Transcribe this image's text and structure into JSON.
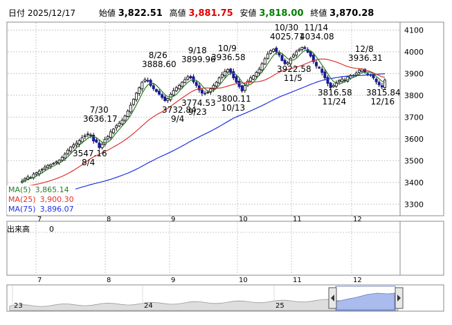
{
  "header": {
    "date_label": "日付",
    "date": "2025/12/17",
    "open_label": "始値",
    "open": "3,822.51",
    "high_label": "高値",
    "high": "3,881.75",
    "low_label": "安値",
    "low": "3,818.00",
    "close_label": "終値",
    "close": "3,870.28"
  },
  "colors": {
    "up_candle": "#ffffff",
    "down_candle": "#1a1a9c",
    "ma5": "#2a7a2a",
    "ma25": "#e03030",
    "ma75": "#2030e0",
    "high_text": "#e00000",
    "low_text": "#008000",
    "navigator_fill": "#aabbee"
  },
  "legend": {
    "ma5_label": "MA(5)",
    "ma5_value": "3,865.14",
    "ma25_label": "MA(25)",
    "ma25_value": "3,900.30",
    "ma75_label": "MA(75)",
    "ma75_value": "3,896.07"
  },
  "volume": {
    "label": "出来高",
    "value": "0"
  },
  "chart_data": {
    "type": "candlestick",
    "ylim": [
      3250,
      4130
    ],
    "y_ticks": [
      "4100",
      "4000",
      "3900",
      "3800",
      "3700",
      "3600",
      "3500",
      "3400",
      "3300"
    ],
    "month_labels": [
      "7",
      "8",
      "9",
      "10",
      "11",
      "12"
    ],
    "navigator_labels": [
      "23",
      "24",
      "25"
    ],
    "annotations": [
      {
        "text": "7/30",
        "value": 3636.17,
        "label": "3636.17",
        "kind": "high"
      },
      {
        "text": "8/4",
        "value": 3547.16,
        "label": "3547.16",
        "kind": "low"
      },
      {
        "text": "8/26",
        "value": 3888.6,
        "label": "3888.60",
        "kind": "high"
      },
      {
        "text": "9/4",
        "value": 3732.84,
        "label": "3732.84",
        "kind": "low"
      },
      {
        "text": "9/18",
        "value": 3899.96,
        "label": "3899.96",
        "kind": "high"
      },
      {
        "text": "9/23",
        "value": 3774.53,
        "label": "3774.53",
        "kind": "low"
      },
      {
        "text": "10/9",
        "value": 3936.58,
        "label": "3936.58",
        "kind": "high"
      },
      {
        "text": "10/13",
        "value": 3800.11,
        "label": "3800.11",
        "kind": "low"
      },
      {
        "text": "10/30",
        "value": 4025.71,
        "label": "4025.71",
        "kind": "high"
      },
      {
        "text": "11/5",
        "value": 3922.58,
        "label": "3922.58",
        "kind": "low"
      },
      {
        "text": "11/14",
        "value": 4034.08,
        "label": "4034.08",
        "kind": "high"
      },
      {
        "text": "11/24",
        "value": 3816.58,
        "label": "3816.58",
        "kind": "low"
      },
      {
        "text": "12/8",
        "value": 3936.31,
        "label": "3936.31",
        "kind": "high"
      },
      {
        "text": "12/16",
        "value": 3815.84,
        "label": "3815.84",
        "kind": "low"
      }
    ],
    "closes": [
      3405,
      3418,
      3425,
      3422,
      3438,
      3445,
      3452,
      3460,
      3470,
      3478,
      3482,
      3488,
      3495,
      3502,
      3515,
      3530,
      3548,
      3562,
      3572,
      3580,
      3592,
      3605,
      3615,
      3622,
      3618,
      3590,
      3585,
      3560,
      3575,
      3598,
      3610,
      3632,
      3645,
      3660,
      3672,
      3685,
      3705,
      3728,
      3755,
      3782,
      3810,
      3835,
      3860,
      3872,
      3865,
      3845,
      3830,
      3818,
      3805,
      3790,
      3775,
      3785,
      3805,
      3822,
      3835,
      3846,
      3860,
      3872,
      3885,
      3880,
      3862,
      3845,
      3825,
      3810,
      3808,
      3815,
      3830,
      3845,
      3860,
      3880,
      3895,
      3910,
      3918,
      3905,
      3880,
      3860,
      3840,
      3820,
      3845,
      3865,
      3880,
      3890,
      3905,
      3920,
      3945,
      3968,
      3990,
      4005,
      4012,
      4000,
      3985,
      3960,
      3945,
      3950,
      3970,
      3985,
      4000,
      4010,
      4020,
      4015,
      3998,
      3980,
      3955,
      3935,
      3925,
      3905,
      3880,
      3855,
      3835,
      3845,
      3858,
      3868,
      3875,
      3870,
      3885,
      3892,
      3890,
      3902,
      3915,
      3920,
      3905,
      3895,
      3895,
      3880,
      3862,
      3848,
      3838,
      3870
    ]
  }
}
